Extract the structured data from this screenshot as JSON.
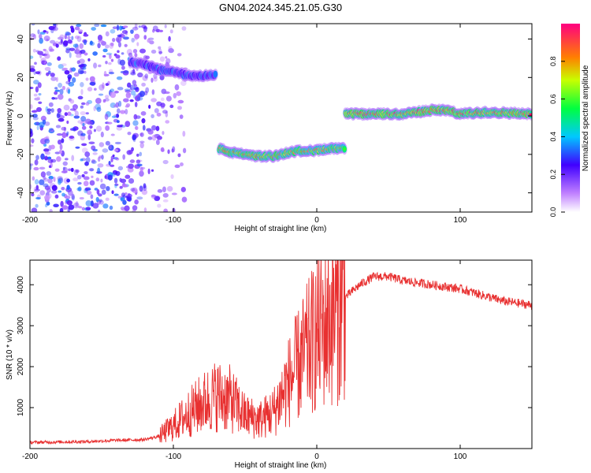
{
  "title": "GN04.2024.345.21.05.G30",
  "chart_data": [
    {
      "type": "heatmap",
      "xlabel": "Height of straight line (km)",
      "ylabel": "Frequency (Hz)",
      "xlim": [
        -200,
        150
      ],
      "ylim": [
        -50,
        48
      ],
      "xticks": [
        -200,
        -100,
        0,
        100
      ],
      "yticks": [
        -40,
        -20,
        0,
        20,
        40
      ],
      "colorbar": {
        "label": "Normalized spectral amplitude",
        "range": [
          0,
          1
        ],
        "ticks": [
          "0.0",
          "0.2",
          "0.4",
          "0.6",
          "0.8"
        ]
      },
      "tracks": [
        {
          "x": [
            -130,
            -120,
            -110,
            -100,
            -90,
            -80,
            -70
          ],
          "y": [
            28,
            27,
            24,
            23,
            21,
            21,
            21
          ],
          "peak": 0.45
        },
        {
          "x": [
            -68,
            -60,
            -50,
            -40,
            -30,
            -20,
            -10,
            0,
            10,
            20
          ],
          "y": [
            -17,
            -19,
            -20,
            -21,
            -21,
            -19,
            -18,
            -18,
            -17,
            -17
          ],
          "peak": 0.9
        },
        {
          "x": [
            20,
            40,
            60,
            80,
            90,
            100,
            120,
            150
          ],
          "y": [
            1,
            1,
            1,
            3,
            3,
            1,
            2,
            1
          ],
          "peak": 1.0
        }
      ],
      "grid": false
    },
    {
      "type": "line",
      "xlabel": "Height of straight line (km)",
      "ylabel": "SNR (10 * v/v)",
      "xlim": [
        -200,
        150
      ],
      "ylim": [
        0,
        4600
      ],
      "xticks": [
        -200,
        -100,
        0,
        100
      ],
      "yticks": [
        1000,
        2000,
        3000,
        4000
      ],
      "color": "#e83030",
      "series": [
        {
          "x": [
            -200,
            -180,
            -160,
            -140,
            -120,
            -110,
            -100,
            -90,
            -80,
            -70,
            -60,
            -50,
            -40,
            -30,
            -20,
            -10,
            0,
            10,
            20,
            30,
            40,
            50,
            60,
            70,
            80,
            90,
            100,
            110,
            120,
            130,
            140,
            150
          ],
          "y": [
            150,
            160,
            170,
            200,
            220,
            300,
            550,
            850,
            1100,
            1300,
            1200,
            800,
            700,
            900,
            1600,
            2200,
            2800,
            3200,
            3700,
            4000,
            4200,
            4200,
            4100,
            4050,
            4000,
            3950,
            3900,
            3800,
            3700,
            3600,
            3550,
            3500
          ]
        }
      ],
      "grid": false
    }
  ]
}
